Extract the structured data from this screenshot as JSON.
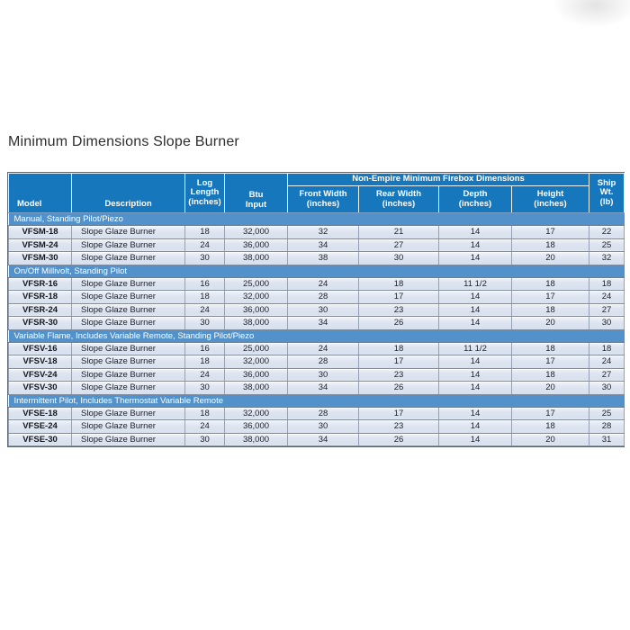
{
  "page": {
    "title": "Minimum Dimensions Slope Burner"
  },
  "colors": {
    "header_blue": "#1777bd",
    "section_blue": "#5291ca",
    "row_background": "#dde4f0",
    "grid_line": "#97a1b2",
    "header_text": "#ffffff",
    "body_text": "#20242c"
  },
  "table": {
    "group_header": "Non-Empire Minimum Firebox Dimensions",
    "column_order": [
      "model",
      "description",
      "log_length",
      "btu_input",
      "front_width",
      "rear_width",
      "depth",
      "height",
      "ship_wt"
    ],
    "columns": {
      "model": "Model",
      "description": "Description",
      "log_length": "Log\nLength\n(inches)",
      "btu_input": "Btu\nInput",
      "front_width": "Front Width\n(inches)",
      "rear_width": "Rear Width\n(inches)",
      "depth": "Depth\n(inches)",
      "height": "Height\n(inches)",
      "ship_wt": "Ship\nWt.\n(lb)"
    },
    "sections": [
      {
        "label": "Manual, Standing Pilot/Piezo",
        "rows": [
          {
            "model": "VFSM-18",
            "description": "Slope Glaze Burner",
            "log_length": "18",
            "btu_input": "32,000",
            "front_width": "32",
            "rear_width": "21",
            "depth": "14",
            "height": "17",
            "ship_wt": "22"
          },
          {
            "model": "VFSM-24",
            "description": "Slope Glaze Burner",
            "log_length": "24",
            "btu_input": "36,000",
            "front_width": "34",
            "rear_width": "27",
            "depth": "14",
            "height": "18",
            "ship_wt": "25"
          },
          {
            "model": "VFSM-30",
            "description": "Slope Glaze Burner",
            "log_length": "30",
            "btu_input": "38,000",
            "front_width": "38",
            "rear_width": "30",
            "depth": "14",
            "height": "20",
            "ship_wt": "32"
          }
        ]
      },
      {
        "label": "On/Off Millivolt, Standing Pilot",
        "rows": [
          {
            "model": "VFSR-16",
            "description": "Slope Glaze Burner",
            "log_length": "16",
            "btu_input": "25,000",
            "front_width": "24",
            "rear_width": "18",
            "depth": "11 1/2",
            "height": "18",
            "ship_wt": "18"
          },
          {
            "model": "VFSR-18",
            "description": "Slope Glaze Burner",
            "log_length": "18",
            "btu_input": "32,000",
            "front_width": "28",
            "rear_width": "17",
            "depth": "14",
            "height": "17",
            "ship_wt": "24"
          },
          {
            "model": "VFSR-24",
            "description": "Slope Glaze Burner",
            "log_length": "24",
            "btu_input": "36,000",
            "front_width": "30",
            "rear_width": "23",
            "depth": "14",
            "height": "18",
            "ship_wt": "27"
          },
          {
            "model": "VFSR-30",
            "description": "Slope Glaze Burner",
            "log_length": "30",
            "btu_input": "38,000",
            "front_width": "34",
            "rear_width": "26",
            "depth": "14",
            "height": "20",
            "ship_wt": "30"
          }
        ]
      },
      {
        "label": "Variable Flame, Includes Variable Remote, Standing Pilot/Piezo",
        "rows": [
          {
            "model": "VFSV-16",
            "description": "Slope Glaze Burner",
            "log_length": "16",
            "btu_input": "25,000",
            "front_width": "24",
            "rear_width": "18",
            "depth": "11 1/2",
            "height": "18",
            "ship_wt": "18"
          },
          {
            "model": "VFSV-18",
            "description": "Slope Glaze Burner",
            "log_length": "18",
            "btu_input": "32,000",
            "front_width": "28",
            "rear_width": "17",
            "depth": "14",
            "height": "17",
            "ship_wt": "24"
          },
          {
            "model": "VFSV-24",
            "description": "Slope Glaze Burner",
            "log_length": "24",
            "btu_input": "36,000",
            "front_width": "30",
            "rear_width": "23",
            "depth": "14",
            "height": "18",
            "ship_wt": "27"
          },
          {
            "model": "VFSV-30",
            "description": "Slope Glaze Burner",
            "log_length": "30",
            "btu_input": "38,000",
            "front_width": "34",
            "rear_width": "26",
            "depth": "14",
            "height": "20",
            "ship_wt": "30"
          }
        ]
      },
      {
        "label": "Intermittent Pilot, Includes Thermostat Variable Remote",
        "rows": [
          {
            "model": "VFSE-18",
            "description": "Slope Glaze Burner",
            "log_length": "18",
            "btu_input": "32,000",
            "front_width": "28",
            "rear_width": "17",
            "depth": "14",
            "height": "17",
            "ship_wt": "25"
          },
          {
            "model": "VFSE-24",
            "description": "Slope Glaze Burner",
            "log_length": "24",
            "btu_input": "36,000",
            "front_width": "30",
            "rear_width": "23",
            "depth": "14",
            "height": "18",
            "ship_wt": "28"
          },
          {
            "model": "VFSE-30",
            "description": "Slope Glaze Burner",
            "log_length": "30",
            "btu_input": "38,000",
            "front_width": "34",
            "rear_width": "26",
            "depth": "14",
            "height": "20",
            "ship_wt": "31"
          }
        ]
      }
    ]
  }
}
